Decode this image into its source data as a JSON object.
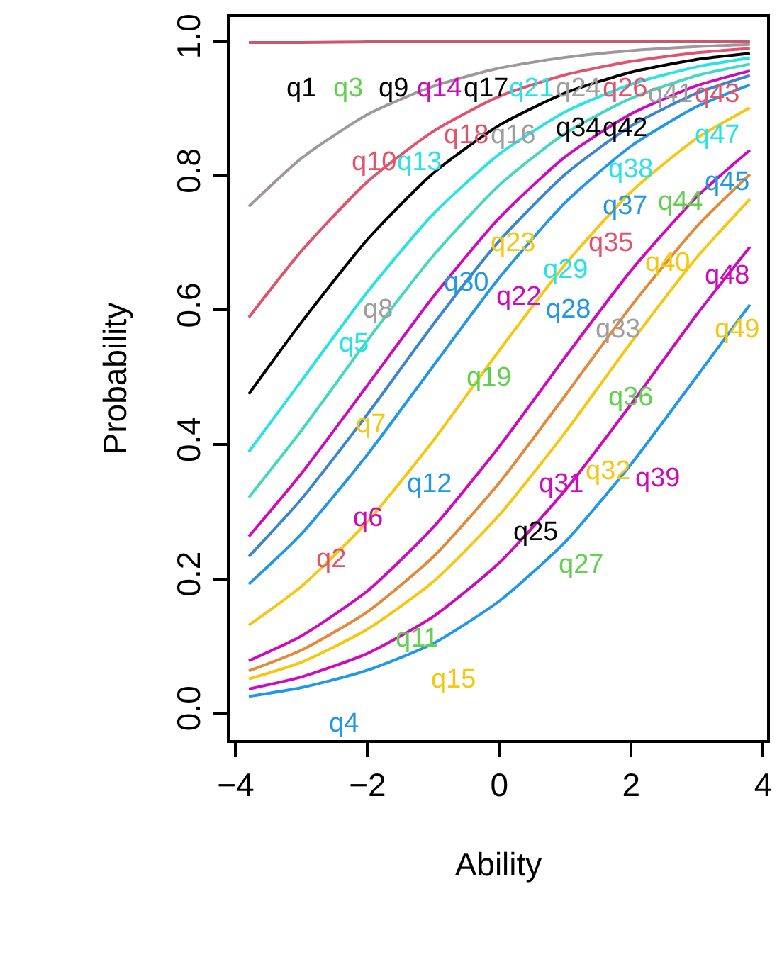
{
  "chart_data": {
    "type": "line",
    "xlabel": "Ability",
    "ylabel": "Probability",
    "x": [
      -3.8,
      -3,
      -2,
      -1,
      0,
      1,
      2,
      3,
      3.8
    ],
    "xlim": [
      -4.09,
      4.06
    ],
    "ylim": [
      -0.04,
      1.036
    ],
    "xticks": [
      {
        "value": -4,
        "label": "−4"
      },
      {
        "value": -2,
        "label": "−2"
      },
      0,
      2,
      4
    ],
    "yticks": [
      {
        "value": 0,
        "label": "0.0"
      },
      {
        "value": 0.2,
        "label": "0.2"
      },
      {
        "value": 0.4,
        "label": "0.4"
      },
      {
        "value": 0.6,
        "label": "0.6"
      },
      {
        "value": 0.8,
        "label": "0.8"
      },
      {
        "value": 1,
        "label": "1.0"
      }
    ],
    "legend": false,
    "marker": "none",
    "line_style": "solid",
    "series": [
      {
        "color": "#c8586b",
        "values": [
          0.998,
          0.998,
          0.999,
          0.999,
          0.999,
          1.0,
          1.0,
          1.0,
          1.0
        ]
      },
      {
        "color": "#a0969c",
        "values": [
          0.754,
          0.826,
          0.891,
          0.933,
          0.96,
          0.976,
          0.986,
          0.992,
          0.995
        ]
      },
      {
        "color": "#df536b",
        "values": [
          0.589,
          0.688,
          0.791,
          0.866,
          0.918,
          0.95,
          0.97,
          0.983,
          0.989
        ]
      },
      {
        "color": "#000000",
        "values": [
          0.475,
          0.582,
          0.705,
          0.804,
          0.875,
          0.923,
          0.954,
          0.973,
          0.982
        ]
      },
      {
        "color": "#28e2e5",
        "values": [
          0.389,
          0.495,
          0.627,
          0.743,
          0.832,
          0.895,
          0.936,
          0.962,
          0.975
        ]
      },
      {
        "color": "#45d8c0",
        "values": [
          0.321,
          0.421,
          0.555,
          0.681,
          0.786,
          0.863,
          0.915,
          0.949,
          0.966
        ]
      },
      {
        "color": "#cd0bbc",
        "values": [
          0.263,
          0.357,
          0.488,
          0.62,
          0.737,
          0.828,
          0.892,
          0.934,
          0.956
        ]
      },
      {
        "color": "#3a85d0",
        "values": [
          0.233,
          0.319,
          0.445,
          0.579,
          0.703,
          0.802,
          0.874,
          0.923,
          0.949
        ]
      },
      {
        "color": "#2297e6",
        "values": [
          0.192,
          0.267,
          0.385,
          0.517,
          0.648,
          0.76,
          0.844,
          0.903,
          0.935
        ]
      },
      {
        "color": "#f5c710",
        "values": [
          0.131,
          0.189,
          0.285,
          0.406,
          0.54,
          0.668,
          0.776,
          0.856,
          0.901
        ]
      },
      {
        "color": "#cd0bbc",
        "values": [
          0.078,
          0.115,
          0.182,
          0.277,
          0.397,
          0.53,
          0.659,
          0.769,
          0.838
        ]
      },
      {
        "color": "#e08a3c",
        "values": [
          0.063,
          0.094,
          0.151,
          0.233,
          0.343,
          0.473,
          0.606,
          0.725,
          0.802
        ]
      },
      {
        "color": "#f5c710",
        "values": [
          0.051,
          0.076,
          0.125,
          0.196,
          0.295,
          0.418,
          0.552,
          0.679,
          0.765
        ]
      },
      {
        "color": "#cd0bbc",
        "values": [
          0.036,
          0.054,
          0.089,
          0.144,
          0.224,
          0.332,
          0.46,
          0.594,
          0.694
        ]
      },
      {
        "color": "#2297e6",
        "values": [
          0.025,
          0.038,
          0.064,
          0.104,
          0.167,
          0.255,
          0.371,
          0.502,
          0.608
        ]
      }
    ],
    "annotations": [
      "q1",
      "q3",
      "q9",
      "q14",
      "q17",
      "q21",
      "q24",
      "q26",
      "q10",
      "q13",
      "q16",
      "q18",
      "q34",
      "q41",
      "q43",
      "q42",
      "q38",
      "q47",
      "q44",
      "q45",
      "q37",
      "q35",
      "q40",
      "q48",
      "q49",
      "q23",
      "q30",
      "q22",
      "q28",
      "q29",
      "q33",
      "q19",
      "q36",
      "q8",
      "q5",
      "q7",
      "q12",
      "q6",
      "q2",
      "q11",
      "q15",
      "q4",
      "q32",
      "q31",
      "q39",
      "q25",
      "q27"
    ]
  }
}
